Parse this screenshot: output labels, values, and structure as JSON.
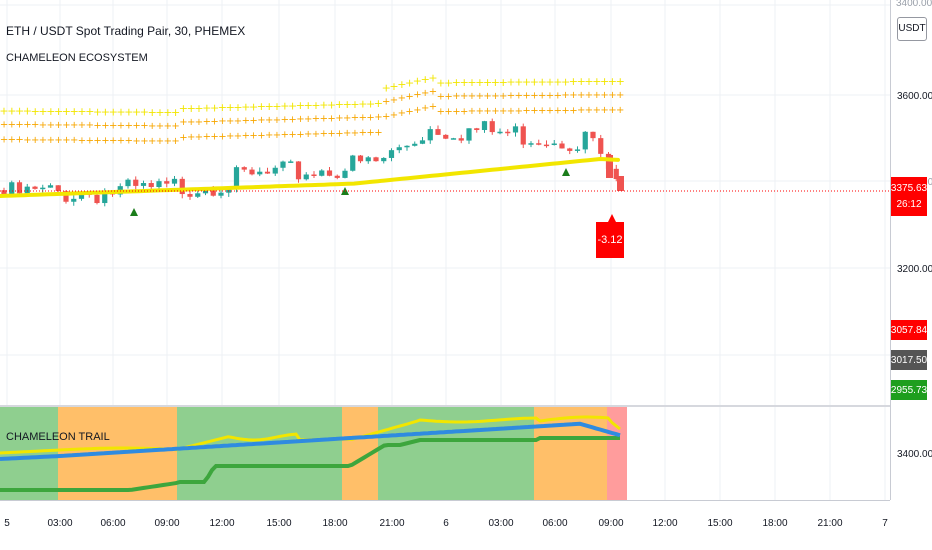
{
  "header": {
    "symbol_title": "ETH / USDT Spot Trading Pair, 30, PHEMEX",
    "indicator_name": "CHAMELEON ECOSYSTEM",
    "unit_label": "USDT",
    "top_scale_label": "3400.00"
  },
  "colors": {
    "up": "#26a69a",
    "down": "#ef5350",
    "trail_yellow": "#f2e600",
    "orange": "#f7a600",
    "green_marker": "#1b7d1b",
    "badge_red": "#ff0000",
    "badge_dark": "#555555",
    "badge_green": "#1e9e1e",
    "zone_green": "#8fcf8f",
    "zone_orange": "#ffbf69",
    "zone_red": "#ff9c9c",
    "line_blue": "#2f8be0",
    "line_yellow": "#f2e600",
    "line_green": "#3da63d"
  },
  "price_axis": {
    "ticks": [
      "3600.00",
      "3400.00",
      "3200.00"
    ],
    "current_price": "3375.63",
    "countdown": "26:12",
    "level_red": "3057.84",
    "level_dark": "3017.50",
    "level_green": "2955.73"
  },
  "annotation": {
    "change_label": "-3.12"
  },
  "lower_pane": {
    "label": "CHAMELEON TRAIL",
    "tick": "3400.00"
  },
  "time_axis": {
    "ticks": [
      "5",
      "03:00",
      "06:00",
      "09:00",
      "12:00",
      "15:00",
      "18:00",
      "21:00",
      "6",
      "03:00",
      "06:00",
      "09:00",
      "12:00",
      "15:00",
      "18:00",
      "21:00",
      "7"
    ]
  },
  "chart_data": [
    {
      "type": "candlestick",
      "title": "ETH / USDT Spot Trading Pair, 30, PHEMEX",
      "ylabel": "USDT",
      "ylim": [
        2890,
        3740
      ],
      "x_ticks": [
        "5",
        "03:00",
        "06:00",
        "09:00",
        "12:00",
        "15:00",
        "18:00",
        "21:00",
        "6",
        "03:00",
        "06:00",
        "09:00",
        "12:00",
        "15:00",
        "18:00",
        "21:00",
        "7"
      ],
      "series": [
        {
          "name": "price",
          "last_value": 3375.63,
          "change": -3.12
        }
      ],
      "price_levels": [
        3057.84,
        3017.5,
        2955.73
      ],
      "grid": true
    },
    {
      "type": "line",
      "title": "CHAMELEON TRAIL",
      "y_ticks": [
        3400.0
      ],
      "background_zones": [
        {
          "color": "green",
          "span": [
            "5",
            "02:30"
          ]
        },
        {
          "color": "orange",
          "span": [
            "02:30",
            "09:30"
          ]
        },
        {
          "color": "green",
          "span": [
            "09:30",
            "18:00"
          ]
        },
        {
          "color": "orange",
          "span": [
            "18:00",
            "20:30"
          ]
        },
        {
          "color": "green",
          "span": [
            "20:30",
            "6 05:00"
          ]
        },
        {
          "color": "orange",
          "span": [
            "6 05:00",
            "6 08:30"
          ]
        },
        {
          "color": "red",
          "span": [
            "6 08:30",
            "6 09:30"
          ]
        }
      ],
      "grid": true
    }
  ]
}
